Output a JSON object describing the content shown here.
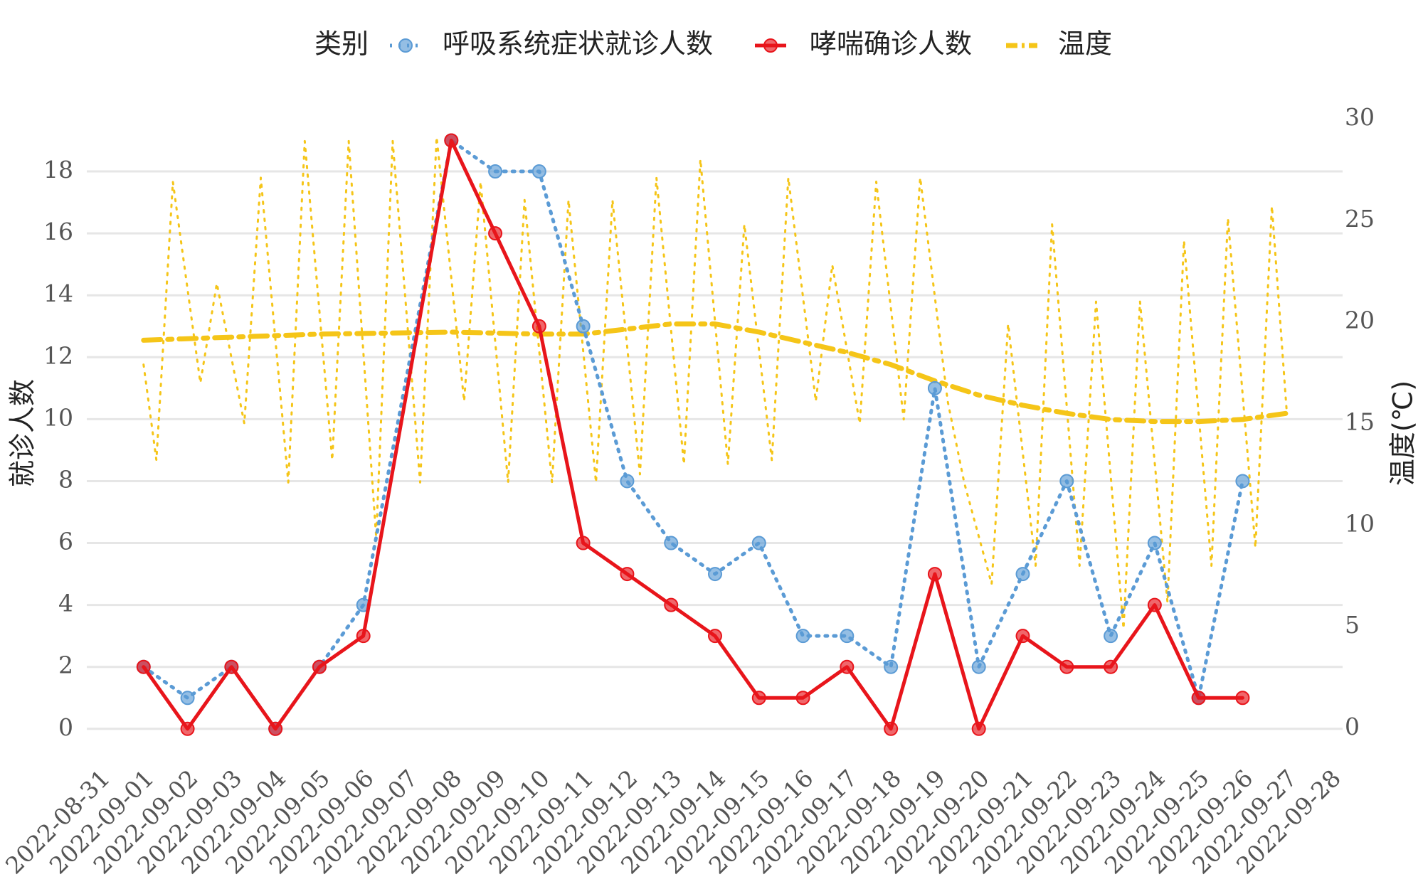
{
  "chart_data": {
    "type": "line",
    "legend_title": "类别",
    "ylabel": "就诊人数",
    "y2label": "温度(℃)",
    "ylim": [
      -0.9,
      19.7
    ],
    "yticks": [
      0,
      2,
      4,
      6,
      8,
      10,
      12,
      14,
      16,
      18
    ],
    "y2lim": [
      -1.4,
      30
    ],
    "y2ticks": [
      0,
      5,
      10,
      15,
      20,
      25,
      30
    ],
    "xlim": [
      "2022-08-31",
      "2022-09-28"
    ],
    "xticks": [
      "2022-08-31",
      "2022-09-01",
      "2022-09-02",
      "2022-09-03",
      "2022-09-04",
      "2022-09-05",
      "2022-09-06",
      "2022-09-07",
      "2022-09-08",
      "2022-09-09",
      "2022-09-10",
      "2022-09-11",
      "2022-09-12",
      "2022-09-13",
      "2022-09-14",
      "2022-09-15",
      "2022-09-16",
      "2022-09-17",
      "2022-09-18",
      "2022-09-19",
      "2022-09-20",
      "2022-09-21",
      "2022-09-22",
      "2022-09-23",
      "2022-09-24",
      "2022-09-25",
      "2022-09-26",
      "2022-09-27",
      "2022-09-28"
    ],
    "grid": true,
    "series": [
      {
        "name": "呼吸系统症状就诊人数",
        "color": "#5b9bd5",
        "style": "dotted",
        "markers": true,
        "x": [
          "2022-09-01",
          "2022-09-02",
          "2022-09-03",
          "2022-09-04",
          "2022-09-05",
          "2022-09-06",
          "2022-09-08",
          "2022-09-09",
          "2022-09-10",
          "2022-09-11",
          "2022-09-12",
          "2022-09-13",
          "2022-09-14",
          "2022-09-15",
          "2022-09-16",
          "2022-09-17",
          "2022-09-18",
          "2022-09-19",
          "2022-09-20",
          "2022-09-21",
          "2022-09-22",
          "2022-09-23",
          "2022-09-24",
          "2022-09-25",
          "2022-09-26"
        ],
        "values": [
          2,
          1,
          2,
          0,
          2,
          4,
          19,
          18,
          18,
          13,
          8,
          6,
          5,
          6,
          3,
          3,
          2,
          11,
          2,
          5,
          8,
          3,
          6,
          1,
          8
        ]
      },
      {
        "name": "哮喘确诊人数",
        "color": "#e8151b",
        "style": "solid",
        "markers": true,
        "x": [
          "2022-09-01",
          "2022-09-02",
          "2022-09-03",
          "2022-09-04",
          "2022-09-05",
          "2022-09-06",
          "2022-09-08",
          "2022-09-09",
          "2022-09-10",
          "2022-09-11",
          "2022-09-12",
          "2022-09-13",
          "2022-09-14",
          "2022-09-15",
          "2022-09-16",
          "2022-09-17",
          "2022-09-18",
          "2022-09-19",
          "2022-09-20",
          "2022-09-21",
          "2022-09-22",
          "2022-09-23",
          "2022-09-24",
          "2022-09-25",
          "2022-09-26"
        ],
        "values": [
          2,
          0,
          2,
          0,
          2,
          3,
          19,
          16,
          13,
          6,
          5,
          4,
          3,
          1,
          1,
          2,
          0,
          5,
          0,
          3,
          2,
          2,
          4,
          1,
          1
        ]
      },
      {
        "name": "温度",
        "color": "#f5c518",
        "style": "dashdot",
        "axis": "y2",
        "markers": false,
        "x": [
          "2022-09-01T00:00",
          "2022-09-01T07:00",
          "2022-09-01T16:00",
          "2022-09-02T07:00",
          "2022-09-02T16:00",
          "2022-09-03T07:00",
          "2022-09-03T16:00",
          "2022-09-04T07:00",
          "2022-09-04T16:00",
          "2022-09-05T07:00",
          "2022-09-05T16:00",
          "2022-09-06T07:00",
          "2022-09-06T16:00",
          "2022-09-07T07:00",
          "2022-09-07T16:00",
          "2022-09-08T07:00",
          "2022-09-08T16:00",
          "2022-09-09T07:00",
          "2022-09-09T16:00",
          "2022-09-10T07:00",
          "2022-09-10T16:00",
          "2022-09-11T07:00",
          "2022-09-11T16:00",
          "2022-09-12T07:00",
          "2022-09-12T16:00",
          "2022-09-13T07:00",
          "2022-09-13T16:00",
          "2022-09-14T07:00",
          "2022-09-14T16:00",
          "2022-09-15T07:00",
          "2022-09-15T16:00",
          "2022-09-16T07:00",
          "2022-09-16T16:00",
          "2022-09-17T07:00",
          "2022-09-17T16:00",
          "2022-09-18T07:00",
          "2022-09-18T16:00",
          "2022-09-19T07:00",
          "2022-09-19T16:00",
          "2022-09-20T07:00",
          "2022-09-20T16:00",
          "2022-09-21T07:00",
          "2022-09-21T16:00",
          "2022-09-22T07:00",
          "2022-09-22T16:00",
          "2022-09-23T07:00",
          "2022-09-23T16:00",
          "2022-09-24T07:00",
          "2022-09-24T16:00",
          "2022-09-25T07:00",
          "2022-09-25T16:00",
          "2022-09-26T07:00",
          "2022-09-26T16:00",
          "2022-09-27T00:00"
        ],
        "values": [
          17.9,
          13.2,
          26.9,
          17,
          21.9,
          15,
          27.1,
          12.1,
          28.9,
          13.2,
          28.9,
          9.4,
          28.9,
          12.1,
          29.1,
          16.1,
          26.9,
          12.1,
          26,
          12.1,
          26,
          12.1,
          26,
          12.5,
          27.1,
          13,
          28,
          13,
          24.8,
          13.2,
          27.1,
          16.1,
          22.8,
          15,
          26.9,
          15.2,
          27.1,
          16.1,
          12.1,
          7.1,
          19.9,
          8,
          24.8,
          8,
          21,
          4.9,
          21,
          6.2,
          24,
          8,
          25.1,
          8.9,
          25.7,
          15.7
        ],
        "trend": {
          "x": [
            "2022-09-01",
            "2022-09-05",
            "2022-09-08",
            "2022-09-10",
            "2022-09-11",
            "2022-09-13",
            "2022-09-14",
            "2022-09-15",
            "2022-09-16",
            "2022-09-17",
            "2022-09-18",
            "2022-09-19",
            "2022-09-20",
            "2022-09-21",
            "2022-09-22",
            "2022-09-23",
            "2022-09-24",
            "2022-09-25",
            "2022-09-26",
            "2022-09-27"
          ],
          "values": [
            19.1,
            19.4,
            19.5,
            19.4,
            19.4,
            19.9,
            19.9,
            19.5,
            19.0,
            18.5,
            17.9,
            17.1,
            16.4,
            15.9,
            15.5,
            15.2,
            15.1,
            15.1,
            15.2,
            15.5
          ]
        }
      }
    ]
  }
}
